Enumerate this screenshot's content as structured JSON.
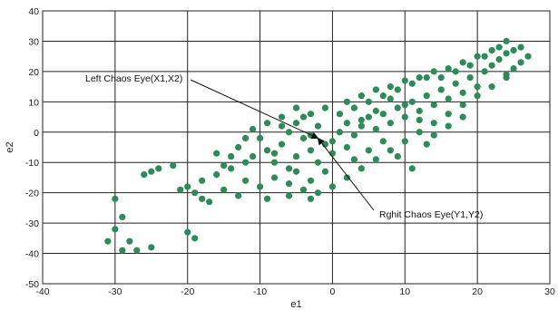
{
  "chart_data": {
    "type": "scatter",
    "title": "",
    "xlabel": "e1",
    "ylabel": "e2",
    "xlim": [
      -40,
      30
    ],
    "ylim": [
      -50,
      40
    ],
    "xticks": [
      -40,
      -30,
      -20,
      -10,
      0,
      10,
      20,
      30
    ],
    "yticks": [
      -50,
      -40,
      -30,
      -20,
      -10,
      0,
      10,
      20,
      30,
      40
    ],
    "grid": true,
    "marker_color": "#2e8b57",
    "annotations": [
      {
        "text": "Left Chaos Eye(X1,X2)",
        "point": [
          -2,
          -2
        ]
      },
      {
        "text": "Rghit Chaos Eye(Y1,Y2)",
        "point": [
          -2,
          -2
        ]
      }
    ],
    "series": [
      {
        "points": [
          [
            -30,
            -22
          ],
          [
            -29,
            -28
          ],
          [
            -30,
            -32
          ],
          [
            -31,
            -36
          ],
          [
            -29,
            -39
          ],
          [
            -27,
            -39
          ],
          [
            -25,
            -38
          ],
          [
            -28,
            -36
          ],
          [
            -26,
            -14
          ],
          [
            -24,
            -12
          ],
          [
            -22,
            -11
          ],
          [
            -25,
            -13
          ],
          [
            -19,
            -35
          ],
          [
            -20,
            -33
          ],
          [
            -17,
            -23
          ],
          [
            -19,
            -20
          ],
          [
            -20,
            -18
          ],
          [
            -18,
            -16
          ],
          [
            -16,
            -14
          ],
          [
            -14,
            -12
          ],
          [
            -12,
            -10
          ],
          [
            -15,
            -19
          ],
          [
            -13,
            -21
          ],
          [
            -10,
            -18
          ],
          [
            -11,
            -8
          ],
          [
            -9,
            -6
          ],
          [
            -8,
            -10
          ],
          [
            -7,
            -4
          ],
          [
            -6,
            -12
          ],
          [
            -5,
            -8
          ],
          [
            -4,
            -2
          ],
          [
            -3,
            -6
          ],
          [
            -2,
            -10
          ],
          [
            -1,
            -4
          ],
          [
            -6,
            0
          ],
          [
            -5,
            3
          ],
          [
            -4,
            5
          ],
          [
            -3,
            -1
          ],
          [
            -2,
            2
          ],
          [
            0,
            -3
          ],
          [
            1,
            0
          ],
          [
            2,
            3
          ],
          [
            3,
            -1
          ],
          [
            4,
            2
          ],
          [
            5,
            5
          ],
          [
            6,
            1
          ],
          [
            7,
            6
          ],
          [
            8,
            3
          ],
          [
            9,
            8
          ],
          [
            10,
            5
          ],
          [
            11,
            10
          ],
          [
            12,
            7
          ],
          [
            13,
            12
          ],
          [
            14,
            9
          ],
          [
            15,
            14
          ],
          [
            16,
            11
          ],
          [
            17,
            16
          ],
          [
            18,
            13
          ],
          [
            19,
            18
          ],
          [
            20,
            15
          ],
          [
            21,
            20
          ],
          [
            22,
            22
          ],
          [
            23,
            24
          ],
          [
            24,
            26
          ],
          [
            25,
            27
          ],
          [
            26,
            28
          ],
          [
            25,
            21
          ],
          [
            24,
            19
          ],
          [
            27,
            25
          ],
          [
            22,
            27
          ],
          [
            20,
            25
          ],
          [
            18,
            23
          ],
          [
            16,
            21
          ],
          [
            14,
            20
          ],
          [
            12,
            18
          ],
          [
            10,
            17
          ],
          [
            8,
            15
          ],
          [
            6,
            14
          ],
          [
            4,
            12
          ],
          [
            2,
            10
          ],
          [
            -1,
            8
          ],
          [
            -3,
            6
          ],
          [
            -5,
            8
          ],
          [
            -7,
            5
          ],
          [
            -9,
            3
          ],
          [
            -11,
            1
          ],
          [
            -12,
            -2
          ],
          [
            -13,
            -5
          ],
          [
            -14,
            -8
          ],
          [
            -15,
            -11
          ],
          [
            -8,
            -15
          ],
          [
            -6,
            -17
          ],
          [
            -4,
            -19
          ],
          [
            -2,
            -20
          ],
          [
            0,
            -18
          ],
          [
            2,
            -15
          ],
          [
            4,
            -12
          ],
          [
            6,
            -9
          ],
          [
            8,
            -6
          ],
          [
            10,
            -3
          ],
          [
            12,
            0
          ],
          [
            14,
            3
          ],
          [
            16,
            6
          ],
          [
            18,
            9
          ],
          [
            20,
            12
          ],
          [
            22,
            15
          ],
          [
            24,
            18
          ],
          [
            11,
            -12
          ],
          [
            9,
            -8
          ],
          [
            13,
            -4
          ],
          [
            -9,
            -22
          ],
          [
            -6,
            -21
          ],
          [
            -3,
            -22
          ],
          [
            -12,
            -16
          ],
          [
            -18,
            -22
          ],
          [
            -21,
            -19
          ],
          [
            -16,
            -7
          ],
          [
            -10,
            -2
          ],
          [
            -7,
            2
          ],
          [
            1,
            6
          ],
          [
            3,
            8
          ],
          [
            5,
            10
          ],
          [
            7,
            12
          ],
          [
            9,
            14
          ],
          [
            11,
            16
          ],
          [
            13,
            18
          ],
          [
            15,
            18
          ],
          [
            17,
            20
          ],
          [
            19,
            22
          ],
          [
            21,
            25
          ],
          [
            23,
            28
          ],
          [
            24,
            30
          ],
          [
            26,
            23
          ],
          [
            5,
            -6
          ],
          [
            7,
            -3
          ],
          [
            3,
            -9
          ],
          [
            -1,
            -13
          ],
          [
            -3,
            -16
          ],
          [
            -5,
            -13
          ],
          [
            -8,
            -7
          ],
          [
            16,
            2
          ],
          [
            18,
            5
          ],
          [
            14,
            -1
          ],
          [
            12,
            4
          ],
          [
            10,
            9
          ],
          [
            8,
            11
          ],
          [
            6,
            7
          ],
          [
            4,
            4
          ],
          [
            2,
            -5
          ],
          [
            0,
            -7
          ]
        ]
      }
    ]
  }
}
